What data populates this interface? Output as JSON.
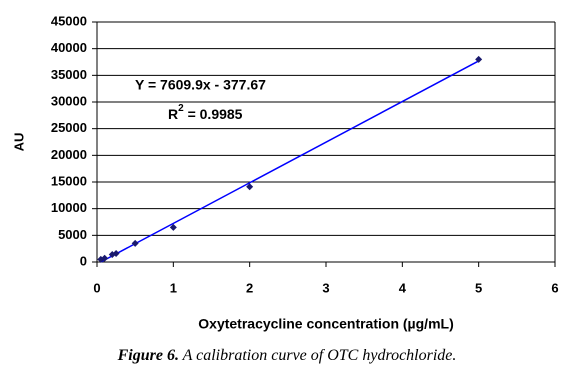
{
  "chart_data": {
    "type": "scatter",
    "x_label": "Oxytetracycline concentration (µg/mL)",
    "y_label": "AU",
    "series": [
      {
        "name": "OTC",
        "color": "#1a1a6e",
        "x": [
          0.05,
          0.1,
          0.2,
          0.25,
          0.5,
          1,
          2,
          5
        ],
        "values": [
          500,
          700,
          1400,
          1600,
          3500,
          6500,
          14100,
          38000
        ]
      }
    ],
    "trendline": {
      "color": "#0000ff",
      "x": [
        0.05,
        5
      ],
      "values": [
        0,
        37700
      ]
    },
    "annotations": [
      {
        "text": "Y = 7609.9x - 377.67"
      },
      {
        "text": "R",
        "sup": "2",
        "rest": " = 0.9985"
      }
    ],
    "xlim": [
      0,
      6
    ],
    "xticks": [
      0,
      1,
      2,
      3,
      4,
      5,
      6
    ],
    "ylim": [
      0,
      45000
    ],
    "yticks": [
      0,
      5000,
      10000,
      15000,
      20000,
      25000,
      30000,
      35000,
      40000,
      45000
    ],
    "grid": true
  },
  "caption": {
    "label": "Figure 6.",
    "text": " A calibration curve of OTC hydrochloride."
  }
}
